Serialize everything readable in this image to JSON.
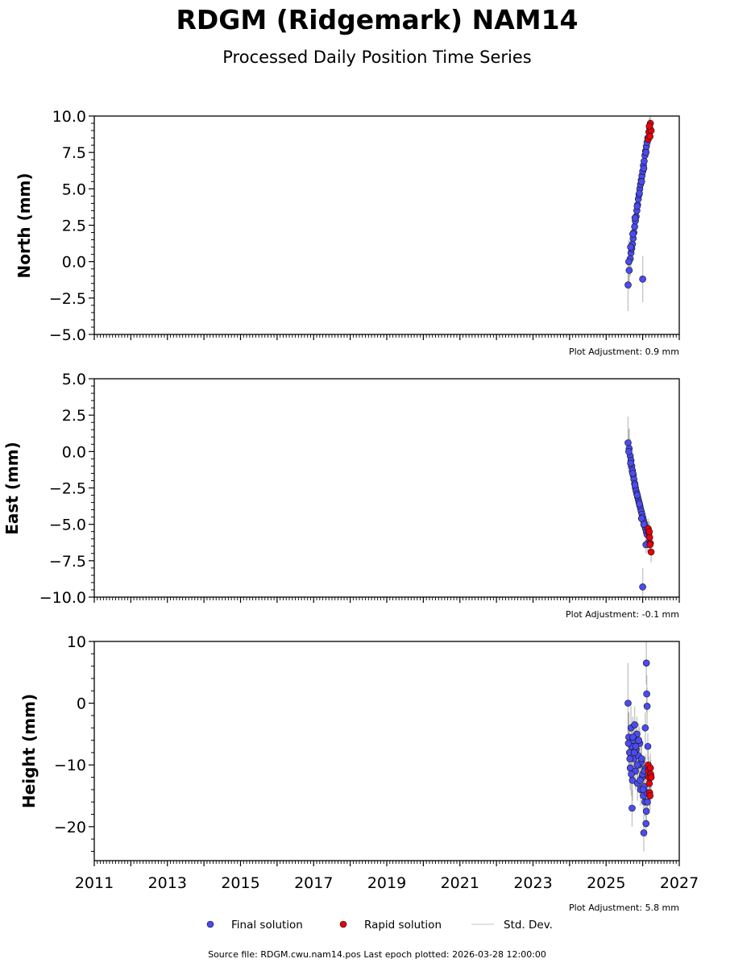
{
  "title": "RDGM (Ridgemark) NAM14",
  "subtitle": "Processed Daily Position Time Series",
  "footer": "Source file: RDGM.cwu.nam14.pos  Last epoch plotted: 2026-03-28 12:00:00",
  "legend": {
    "final": "Final solution",
    "rapid": "Rapid solution",
    "std": "Std. Dev."
  },
  "colors": {
    "final": "#4b4bf0",
    "rapid": "#e8000b",
    "std_dev": "#808080",
    "marker_edge": "#111111"
  },
  "chart_data": [
    {
      "type": "scatter",
      "title": "",
      "ylabel": "North (mm)",
      "adjustment": "Plot Adjustment: 0.9 mm",
      "xlim": [
        2011,
        2027
      ],
      "ylim": [
        -5,
        10
      ],
      "yticks": [
        "10.0",
        "7.5",
        "5.0",
        "2.5",
        "0.0",
        "−2.5",
        "−5.0"
      ],
      "yticks_values": [
        10,
        7.5,
        5,
        2.5,
        0,
        -2.5,
        -5
      ],
      "x_tick_labels_shown": false,
      "series": [
        {
          "name": "Final solution",
          "x": [
            2025.6,
            2025.63,
            2025.66,
            2025.68,
            2025.7,
            2025.72,
            2025.74,
            2025.76,
            2025.78,
            2025.8,
            2025.82,
            2025.84,
            2025.86,
            2025.88,
            2025.9,
            2025.92,
            2025.94,
            2025.96,
            2025.98,
            2026.0,
            2026.02,
            2026.04,
            2026.06,
            2026.08,
            2026.1,
            2026.12,
            2026.14,
            2025.62,
            2025.67,
            2025.73,
            2025.79,
            2025.85,
            2025.91,
            2025.97,
            2026.03,
            2026.09,
            2026.0
          ],
          "y": [
            -1.6,
            -0.6,
            0.2,
            0.6,
            0.9,
            1.2,
            1.6,
            2.0,
            2.4,
            2.8,
            3.1,
            3.5,
            3.9,
            4.3,
            4.6,
            5.0,
            5.3,
            5.6,
            5.9,
            6.2,
            6.6,
            6.9,
            7.3,
            7.6,
            7.9,
            8.2,
            8.5,
            0.0,
            1.0,
            1.9,
            3.0,
            3.8,
            4.7,
            5.5,
            6.4,
            7.5,
            -1.2
          ],
          "err": [
            1.8,
            1.3,
            1.2,
            1.1,
            1.0,
            1.0,
            0.9,
            0.9,
            0.9,
            0.9,
            0.8,
            0.8,
            0.8,
            0.8,
            0.8,
            0.8,
            0.7,
            0.7,
            0.7,
            0.7,
            0.7,
            0.7,
            0.7,
            0.6,
            0.6,
            0.6,
            0.6,
            1.5,
            1.1,
            1.0,
            0.9,
            0.8,
            0.8,
            0.7,
            0.7,
            0.6,
            1.6
          ]
        },
        {
          "name": "Rapid solution",
          "x": [
            2026.15,
            2026.17,
            2026.19,
            2026.21,
            2026.23,
            2026.2,
            2026.18
          ],
          "y": [
            8.4,
            8.9,
            9.2,
            9.5,
            9.0,
            8.6,
            9.3
          ],
          "err": [
            0.6,
            0.6,
            0.6,
            0.6,
            0.6,
            0.6,
            0.6
          ]
        }
      ]
    },
    {
      "type": "scatter",
      "title": "",
      "ylabel": "East (mm)",
      "adjustment": "Plot Adjustment: -0.1 mm",
      "xlim": [
        2011,
        2027
      ],
      "ylim": [
        -10,
        5
      ],
      "yticks": [
        "5.0",
        "2.5",
        "0.0",
        "−2.5",
        "−5.0",
        "−7.5",
        "−10.0"
      ],
      "yticks_values": [
        5,
        2.5,
        0,
        -2.5,
        -5,
        -7.5,
        -10
      ],
      "x_tick_labels_shown": false,
      "series": [
        {
          "name": "Final solution",
          "x": [
            2025.6,
            2025.63,
            2025.66,
            2025.68,
            2025.7,
            2025.72,
            2025.74,
            2025.76,
            2025.78,
            2025.8,
            2025.82,
            2025.84,
            2025.86,
            2025.88,
            2025.9,
            2025.92,
            2025.94,
            2025.96,
            2025.98,
            2026.0,
            2026.02,
            2026.04,
            2026.06,
            2026.08,
            2026.1,
            2026.12,
            2026.14,
            2025.62,
            2025.67,
            2025.73,
            2025.79,
            2025.85,
            2025.91,
            2025.97,
            2026.03,
            2026.09,
            2026.0
          ],
          "y": [
            0.6,
            0.2,
            -0.3,
            -0.6,
            -1.0,
            -1.3,
            -1.6,
            -1.9,
            -2.2,
            -2.5,
            -2.7,
            -2.9,
            -3.1,
            -3.3,
            -3.5,
            -3.7,
            -3.9,
            -4.1,
            -4.3,
            -4.5,
            -4.7,
            -4.9,
            -5.1,
            -5.3,
            -5.5,
            -5.7,
            -6.3,
            0.0,
            -0.8,
            -1.5,
            -2.3,
            -3.0,
            -3.6,
            -4.6,
            -5.0,
            -6.4,
            -9.3
          ],
          "err": [
            1.8,
            1.4,
            1.2,
            1.1,
            1.0,
            1.0,
            0.9,
            0.9,
            0.9,
            0.9,
            0.8,
            0.8,
            0.8,
            0.8,
            0.8,
            0.8,
            0.7,
            0.7,
            0.7,
            0.7,
            0.7,
            0.7,
            0.7,
            0.6,
            0.6,
            0.6,
            0.6,
            1.5,
            1.1,
            1.0,
            0.9,
            0.8,
            0.8,
            0.7,
            0.7,
            0.6,
            1.3
          ]
        },
        {
          "name": "Rapid solution",
          "x": [
            2026.15,
            2026.17,
            2026.19,
            2026.21,
            2026.23,
            2026.2,
            2026.18
          ],
          "y": [
            -5.3,
            -5.6,
            -5.9,
            -6.3,
            -6.9,
            -6.4,
            -5.5
          ],
          "err": [
            0.7,
            0.7,
            0.7,
            0.7,
            0.7,
            0.7,
            0.7
          ]
        }
      ]
    },
    {
      "type": "scatter",
      "title": "",
      "ylabel": "Height (mm)",
      "adjustment": "Plot Adjustment: 5.8 mm",
      "xlim": [
        2011,
        2027
      ],
      "ylim": [
        -25.5,
        10
      ],
      "yticks": [
        "10",
        "0",
        "−10",
        "−20"
      ],
      "yticks_values": [
        10,
        0,
        -10,
        -20
      ],
      "xticks": [
        "2011",
        "2013",
        "2015",
        "2017",
        "2019",
        "2021",
        "2023",
        "2025",
        "2027"
      ],
      "xticks_values": [
        2011,
        2013,
        2015,
        2017,
        2019,
        2021,
        2023,
        2025,
        2027
      ],
      "series": [
        {
          "name": "Final solution",
          "x": [
            2025.6,
            2025.62,
            2025.64,
            2025.66,
            2025.68,
            2025.7,
            2025.72,
            2025.74,
            2025.76,
            2025.78,
            2025.8,
            2025.82,
            2025.84,
            2025.86,
            2025.88,
            2025.9,
            2025.92,
            2025.94,
            2025.96,
            2025.98,
            2026.0,
            2026.02,
            2026.04,
            2026.06,
            2026.08,
            2026.1,
            2026.12,
            2026.14,
            2025.61,
            2025.65,
            2025.69,
            2025.73,
            2025.77,
            2025.81,
            2025.85,
            2025.89,
            2025.93,
            2025.97,
            2026.01,
            2026.05,
            2026.09,
            2026.13,
            2026.1,
            2026.11,
            2026.12,
            2026.03,
            2026.07,
            2025.71
          ],
          "y": [
            0.0,
            -5.5,
            -8.0,
            -10.5,
            -4.0,
            -7.0,
            -12.5,
            -6.0,
            -9.0,
            -3.5,
            -11.0,
            -7.5,
            -5.0,
            -13.0,
            -8.5,
            -10.0,
            -6.5,
            -14.0,
            -9.5,
            -12.0,
            -11.5,
            -15.0,
            -13.5,
            -16.0,
            -10.5,
            -17.5,
            -14.5,
            -7.0,
            -6.5,
            -9.0,
            -11.5,
            -5.5,
            -8.0,
            -7.0,
            -10.0,
            -6.0,
            -12.5,
            -9.0,
            -14.0,
            -11.0,
            -19.5,
            -16.0,
            6.5,
            1.5,
            -0.5,
            -21.0,
            -4.0,
            -17.0
          ],
          "err": [
            6.5,
            4.0,
            3.8,
            3.6,
            3.5,
            3.4,
            3.3,
            3.2,
            3.1,
            3.0,
            3.0,
            2.9,
            2.8,
            2.8,
            2.7,
            2.7,
            2.6,
            2.6,
            2.5,
            2.5,
            2.4,
            2.4,
            2.3,
            2.3,
            2.2,
            2.2,
            2.2,
            2.1,
            5.0,
            3.9,
            3.5,
            3.3,
            3.1,
            2.9,
            2.8,
            2.7,
            2.6,
            2.5,
            2.4,
            2.3,
            2.2,
            2.1,
            3.5,
            3.0,
            3.0,
            3.0,
            2.5,
            3.0
          ]
        },
        {
          "name": "Rapid solution",
          "x": [
            2026.15,
            2026.16,
            2026.17,
            2026.18,
            2026.19,
            2026.2,
            2026.21,
            2026.22,
            2026.23
          ],
          "y": [
            -10.0,
            -11.0,
            -12.0,
            -13.0,
            -14.5,
            -15.0,
            -10.5,
            -11.5,
            -12.0
          ],
          "err": [
            2.3,
            2.3,
            2.3,
            2.3,
            2.3,
            2.3,
            2.3,
            2.3,
            2.3
          ]
        }
      ]
    }
  ]
}
